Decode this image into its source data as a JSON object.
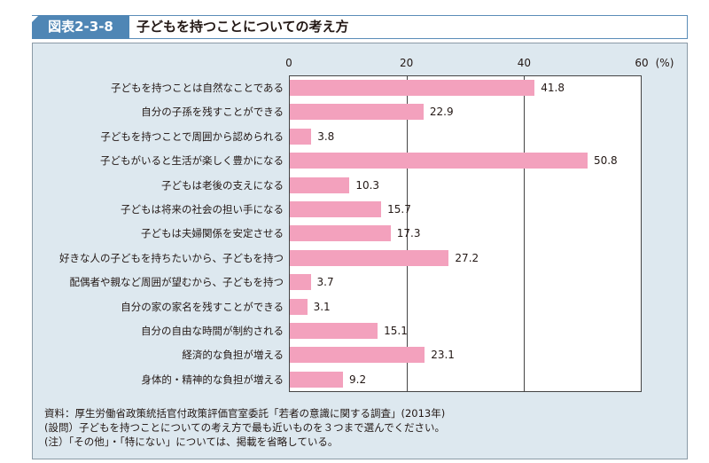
{
  "header": {
    "figure_id": "図表2-3-8",
    "title": "子どもを持つことについての考え方"
  },
  "chart_data": {
    "type": "bar",
    "orientation": "horizontal",
    "title": "子どもを持つことについての考え方",
    "xlim": [
      0,
      60
    ],
    "xticks": [
      "0",
      "20",
      "40",
      "60"
    ],
    "unit_label": "(%)",
    "categories": [
      "子どもを持つことは自然なことである",
      "自分の子孫を残すことができる",
      "子どもを持つことで周囲から認められる",
      "子どもがいると生活が楽しく豊かになる",
      "子どもは老後の支えになる",
      "子どもは将来の社会の担い手になる",
      "子どもは夫婦関係を安定させる",
      "好きな人の子どもを持ちたいから、子どもを持つ",
      "配偶者や親など周囲が望むから、子どもを持つ",
      "自分の家の家名を残すことができる",
      "自分の自由な時間が制約される",
      "経済的な負担が増える",
      "身体的・精神的な負担が増える"
    ],
    "values": [
      41.8,
      22.9,
      3.8,
      50.8,
      10.3,
      15.7,
      17.3,
      27.2,
      3.7,
      3.1,
      15.1,
      23.1,
      9.2
    ],
    "bar_color": "#f3a1bd",
    "grid": true
  },
  "notes": [
    "資料：厚生労働省政策統括官付政策評価官室委託「若者の意識に関する調査」(2013年)",
    "(設問）子どもを持つことについての考え方で最も近いものを３つまで選んでください。",
    "(注）「その他」・「特にない」については、掲載を省略している。"
  ]
}
